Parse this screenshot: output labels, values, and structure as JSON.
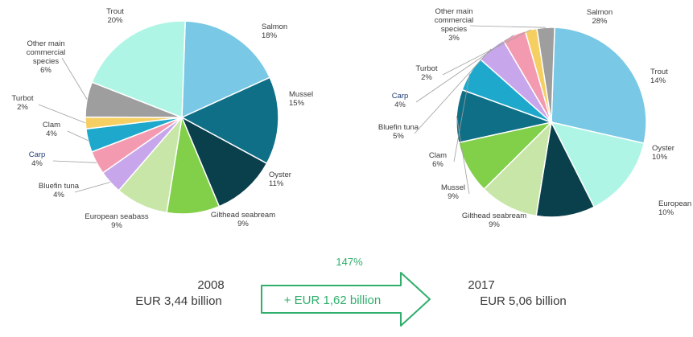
{
  "chart_data": [
    {
      "type": "pie",
      "year": "2008",
      "value_text": "EUR 3,44 billion",
      "slices": [
        {
          "name": "Salmon",
          "pct_text": "18%",
          "value": 18,
          "color": "#78c8e6"
        },
        {
          "name": "Mussel",
          "pct_text": "15%",
          "value": 15,
          "color": "#0e6f86"
        },
        {
          "name": "Oyster",
          "pct_text": "11%",
          "value": 11,
          "color": "#0a3f4c"
        },
        {
          "name": "Gilthead seabream",
          "pct_text": "9%",
          "value": 9,
          "color": "#82cf4a"
        },
        {
          "name": "European seabass",
          "pct_text": "9%",
          "value": 9,
          "color": "#c8e6a8"
        },
        {
          "name": "Bluefin tuna",
          "pct_text": "4%",
          "value": 4,
          "color": "#c8a6ec"
        },
        {
          "name": "Carp",
          "pct_text": "4%",
          "value": 4,
          "color": "#f39ab0"
        },
        {
          "name": "Clam",
          "pct_text": "4%",
          "value": 4,
          "color": "#1ea9cc"
        },
        {
          "name": "Turbot",
          "pct_text": "2%",
          "value": 2,
          "color": "#f6cf63"
        },
        {
          "name": "Other main commercial species",
          "pct_text": "6%",
          "value": 6,
          "color": "#9e9e9e"
        },
        {
          "name": "Trout",
          "pct_text": "20%",
          "value": 20,
          "color": "#aff5e6"
        }
      ]
    },
    {
      "type": "pie",
      "year": "2017",
      "value_text": "EUR 5,06 billion",
      "slices": [
        {
          "name": "Salmon",
          "pct_text": "28%",
          "value": 28,
          "color": "#78c8e6"
        },
        {
          "name": "Trout",
          "pct_text": "14%",
          "value": 14,
          "color": "#aff5e6"
        },
        {
          "name": "Oyster",
          "pct_text": "10%",
          "value": 10,
          "color": "#0a3f4c"
        },
        {
          "name": "European seabass",
          "pct_text": "10%",
          "value": 10,
          "color": "#c8e6a8"
        },
        {
          "name": "Gilthead seabream",
          "pct_text": "9%",
          "value": 9,
          "color": "#82cf4a"
        },
        {
          "name": "Mussel",
          "pct_text": "9%",
          "value": 9,
          "color": "#0e6f86"
        },
        {
          "name": "Clam",
          "pct_text": "6%",
          "value": 6,
          "color": "#1ea9cc"
        },
        {
          "name": "Bluefin tuna",
          "pct_text": "5%",
          "value": 5,
          "color": "#c8a6ec"
        },
        {
          "name": "Carp",
          "pct_text": "4%",
          "value": 4,
          "color": "#f39ab0"
        },
        {
          "name": "Turbot",
          "pct_text": "2%",
          "value": 2,
          "color": "#f6cf63"
        },
        {
          "name": "Other main commercial species",
          "pct_text": "3%",
          "value": 3,
          "color": "#9e9e9e"
        }
      ]
    }
  ],
  "growth": {
    "percent_text": "147%",
    "amount_text": "+ EUR 1,62 billion",
    "color": "#2fae6c"
  }
}
